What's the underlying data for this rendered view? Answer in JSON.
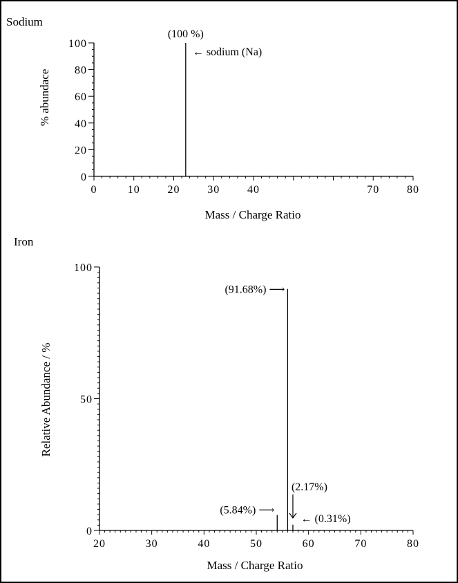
{
  "chart_data": [
    {
      "type": "bar",
      "title": "Sodium",
      "xlabel": "Mass / Charge Ratio",
      "ylabel": "% abundace",
      "xlim": [
        0,
        80
      ],
      "ylim": [
        0,
        100
      ],
      "xticks": [
        0,
        10,
        20,
        30,
        40,
        70,
        80
      ],
      "yticks": [
        0,
        20,
        40,
        60,
        80,
        100
      ],
      "x": [
        23
      ],
      "values": [
        100
      ],
      "annotations": [
        {
          "text": "(100 %)",
          "x": 23,
          "y": 100,
          "placement": "above"
        },
        {
          "text": "← sodium (Na)",
          "x": 23,
          "y": 100,
          "placement": "right"
        }
      ],
      "grid": false
    },
    {
      "type": "bar",
      "title": "Iron",
      "xlabel": "Mass / Charge Ratio",
      "ylabel": "Relative Abundance / %",
      "xlim": [
        20,
        80
      ],
      "ylim": [
        0,
        100
      ],
      "xticks": [
        20,
        30,
        40,
        50,
        60,
        70,
        80
      ],
      "yticks": [
        0,
        50,
        100
      ],
      "x": [
        54,
        56,
        57,
        58
      ],
      "values": [
        5.84,
        91.68,
        2.17,
        0.31
      ],
      "annotations": [
        {
          "text": "(91.68%) ⟶",
          "x": 56,
          "y": 91.68,
          "placement": "left"
        },
        {
          "text": "(5.84%) ⟶",
          "x": 54,
          "y": 5.84,
          "placement": "left"
        },
        {
          "text": "(2.17%)",
          "x": 57,
          "y": 2.17,
          "placement": "above"
        },
        {
          "text": "← (0.31%)",
          "x": 58,
          "y": 0.31,
          "placement": "right"
        }
      ],
      "grid": false
    }
  ]
}
